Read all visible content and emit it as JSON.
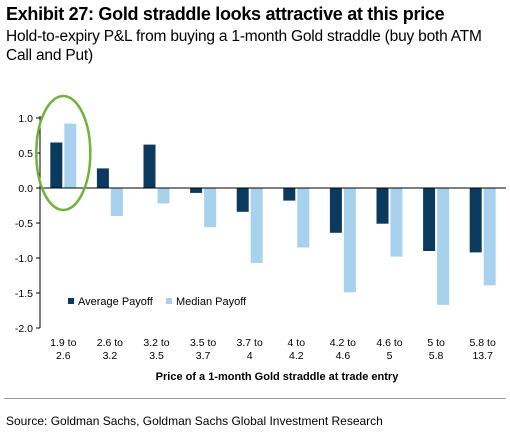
{
  "header": {
    "title": "Exhibit 27: Gold straddle looks attractive at this price",
    "subtitle": "Hold-to-expiry P&L from buying a 1-month Gold straddle (buy both ATM Call and Put)"
  },
  "footer": {
    "source": "Source: Goldman Sachs, Goldman Sachs Global Investment Research"
  },
  "colors": {
    "average": "#0b3a5e",
    "median": "#a8d1ee",
    "highlight_circle": "#6fb33a"
  },
  "chart_data": {
    "type": "bar",
    "categories": [
      [
        "1.9 to",
        "2.6"
      ],
      [
        "2.6 to",
        "3.2"
      ],
      [
        "3.2 to",
        "3.5"
      ],
      [
        "3.5 to",
        "3.7"
      ],
      [
        "3.7 to",
        "4"
      ],
      [
        "4 to",
        "4.2"
      ],
      [
        "4.2 to",
        "4.6"
      ],
      [
        "4.6 to",
        "5"
      ],
      [
        "5 to",
        "5.8"
      ],
      [
        "5.8 to",
        "13.7"
      ]
    ],
    "series": [
      {
        "name": "Average Payoff",
        "values": [
          0.65,
          0.28,
          0.62,
          -0.07,
          -0.34,
          -0.18,
          -0.64,
          -0.51,
          -0.9,
          -0.92
        ]
      },
      {
        "name": "Median Payoff",
        "values": [
          0.92,
          -0.4,
          -0.22,
          -0.56,
          -1.07,
          -0.85,
          -1.49,
          -0.98,
          -1.67,
          -1.39
        ]
      }
    ],
    "xlabel": "Price of a 1-month Gold straddle at trade entry",
    "ylabel": "",
    "ylim": [
      -2.0,
      1.0
    ],
    "yticks": [
      "1.0",
      "0.5",
      "0.0",
      "-0.5",
      "-1.0",
      "-1.5",
      "-2.0"
    ],
    "legend_position": "lower-left",
    "grid": false,
    "annotations": [
      {
        "type": "circle",
        "around_category_index": 0
      }
    ]
  }
}
